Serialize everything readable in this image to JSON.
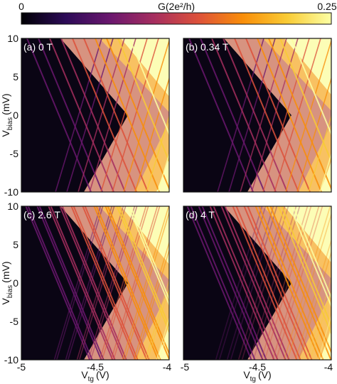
{
  "colorbar": {
    "label": "G(2e²/h)",
    "min_label": "0",
    "max_label": "0.25",
    "min": 0,
    "max": 0.25,
    "colormap": "inferno",
    "stops": [
      "#000004",
      "#2c0b57",
      "#6a176e",
      "#a62e5f",
      "#dd513a",
      "#f98e09",
      "#f9cb35",
      "#fcffa4"
    ]
  },
  "chart_data": {
    "type": "heatmap",
    "x_range": [
      -5,
      -4
    ],
    "y_range": [
      -10,
      10
    ],
    "xlabel_main": "V",
    "xlabel_sub": "tg",
    "xlabel_unit": "(V)",
    "ylabel_main": "V",
    "ylabel_sub": "bias",
    "ylabel_unit": "(mV)",
    "x_ticks": [
      -5,
      -4.5,
      -4
    ],
    "x_tick_labels": [
      "-5",
      "-4.5",
      "-4"
    ],
    "y_ticks": [
      10,
      5,
      0,
      -5,
      -10
    ],
    "y_tick_labels": [
      "10",
      "5",
      "0",
      "-5",
      "-10"
    ],
    "panels": [
      {
        "label": "(a) 0 T",
        "field_T": 0
      },
      {
        "label": "(b) 0.34 T",
        "field_T": 0.34
      },
      {
        "label": "(c) 2.6 T",
        "field_T": 2.6
      },
      {
        "label": "(d) 4 T",
        "field_T": 4
      }
    ]
  }
}
